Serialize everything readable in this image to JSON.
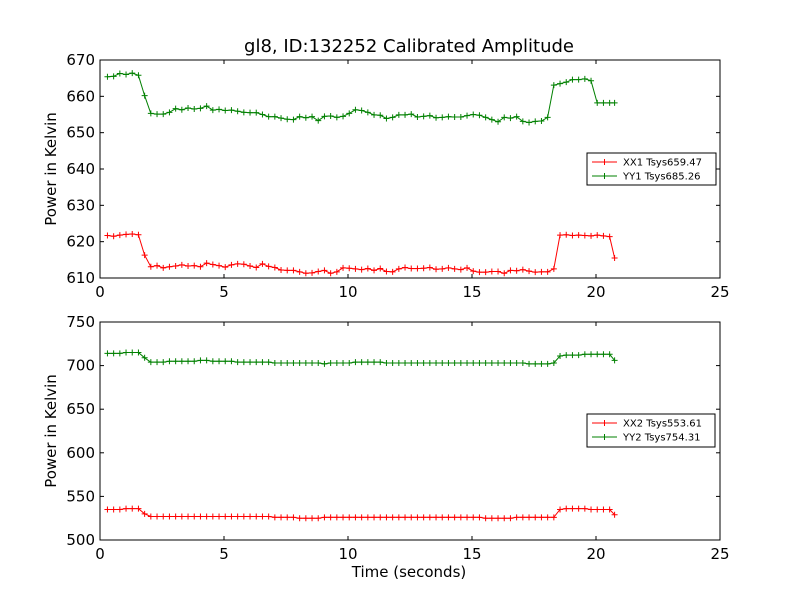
{
  "chart_data": [
    {
      "type": "line",
      "title": "gl8, ID:132252 Calibrated Amplitude",
      "xlabel": "",
      "ylabel": "Power in Kelvin",
      "xlim": [
        0,
        25
      ],
      "ylim": [
        610,
        670
      ],
      "xticks": [
        "0",
        "5",
        "10",
        "15",
        "20",
        "25"
      ],
      "yticks": [
        "610",
        "620",
        "630",
        "640",
        "650",
        "660",
        "670"
      ],
      "legend_position": "right",
      "series": [
        {
          "name": "XX1 Tsys659.47",
          "color": "#ff0000",
          "x": [
            0.3,
            0.55,
            0.8,
            1.05,
            1.3,
            1.55,
            1.8,
            2.05,
            2.3,
            2.55,
            2.8,
            3.05,
            3.3,
            3.55,
            3.8,
            4.05,
            4.3,
            4.55,
            4.8,
            5.05,
            5.3,
            5.55,
            5.8,
            6.05,
            6.3,
            6.55,
            6.8,
            7.05,
            7.3,
            7.55,
            7.8,
            8.05,
            8.3,
            8.55,
            8.8,
            9.05,
            9.3,
            9.55,
            9.8,
            10.05,
            10.3,
            10.55,
            10.8,
            11.05,
            11.3,
            11.55,
            11.8,
            12.05,
            12.3,
            12.55,
            12.8,
            13.05,
            13.3,
            13.55,
            13.8,
            14.05,
            14.3,
            14.55,
            14.8,
            15.05,
            15.3,
            15.55,
            15.8,
            16.05,
            16.3,
            16.55,
            16.8,
            17.05,
            17.3,
            17.55,
            17.8,
            18.05,
            18.3,
            18.55,
            18.8,
            19.05,
            19.3,
            19.55,
            19.8,
            20.05,
            20.3,
            20.55,
            20.75
          ],
          "y": [
            621.7,
            621.5,
            621.8,
            622.0,
            622.1,
            621.9,
            616.3,
            613.1,
            613.4,
            612.8,
            613.1,
            613.3,
            613.6,
            613.3,
            613.4,
            613.1,
            614.1,
            613.7,
            613.4,
            613.0,
            613.6,
            613.9,
            613.8,
            613.3,
            612.9,
            613.9,
            613.2,
            612.9,
            612.2,
            612.1,
            612.1,
            611.7,
            611.3,
            611.4,
            611.8,
            612.1,
            611.3,
            611.7,
            612.8,
            612.7,
            612.5,
            612.3,
            612.6,
            612.1,
            612.6,
            611.8,
            611.7,
            612.5,
            612.9,
            612.6,
            612.6,
            612.7,
            612.9,
            612.4,
            612.5,
            612.8,
            612.5,
            612.3,
            612.8,
            611.9,
            611.6,
            611.6,
            611.8,
            611.8,
            611.3,
            612.1,
            612.0,
            612.3,
            611.9,
            611.6,
            611.7,
            611.7,
            612.5,
            621.8,
            621.9,
            621.7,
            621.8,
            621.7,
            621.6,
            621.8,
            621.6,
            621.4,
            615.5
          ]
        },
        {
          "name": "YY1 Tsys685.26",
          "color": "#008000",
          "x": [
            0.3,
            0.55,
            0.8,
            1.05,
            1.3,
            1.55,
            1.8,
            2.05,
            2.3,
            2.55,
            2.8,
            3.05,
            3.3,
            3.55,
            3.8,
            4.05,
            4.3,
            4.55,
            4.8,
            5.05,
            5.3,
            5.55,
            5.8,
            6.05,
            6.3,
            6.55,
            6.8,
            7.05,
            7.3,
            7.55,
            7.8,
            8.05,
            8.3,
            8.55,
            8.8,
            9.05,
            9.3,
            9.55,
            9.8,
            10.05,
            10.3,
            10.55,
            10.8,
            11.05,
            11.3,
            11.55,
            11.8,
            12.05,
            12.3,
            12.55,
            12.8,
            13.05,
            13.3,
            13.55,
            13.8,
            14.05,
            14.3,
            14.55,
            14.8,
            15.05,
            15.3,
            15.55,
            15.8,
            16.05,
            16.3,
            16.55,
            16.8,
            17.05,
            17.3,
            17.55,
            17.8,
            18.05,
            18.3,
            18.55,
            18.8,
            19.05,
            19.3,
            19.55,
            19.8,
            20.05,
            20.3,
            20.55,
            20.75
          ],
          "y": [
            665.4,
            665.5,
            666.3,
            666.0,
            666.4,
            665.8,
            660.2,
            655.3,
            655.1,
            655.1,
            655.6,
            656.6,
            656.3,
            656.8,
            656.5,
            656.7,
            657.3,
            656.2,
            656.4,
            656.1,
            656.2,
            655.9,
            655.6,
            655.5,
            655.5,
            655.0,
            654.4,
            654.4,
            654.0,
            653.7,
            653.6,
            654.4,
            654.1,
            654.4,
            653.3,
            654.5,
            654.6,
            654.2,
            654.5,
            655.3,
            656.3,
            656.1,
            655.6,
            654.9,
            654.8,
            653.9,
            654.2,
            654.9,
            654.9,
            655.1,
            654.3,
            654.5,
            654.7,
            654.1,
            654.2,
            654.4,
            654.3,
            654.3,
            654.7,
            655.0,
            654.8,
            654.2,
            653.6,
            653.0,
            654.2,
            654.0,
            654.4,
            653.1,
            652.8,
            653.1,
            653.2,
            654.2,
            663.1,
            663.5,
            663.9,
            664.6,
            664.6,
            664.8,
            664.3,
            658.2,
            658.2,
            658.2,
            658.2
          ]
        }
      ]
    },
    {
      "type": "line",
      "title": "",
      "xlabel": "Time (seconds)",
      "ylabel": "Power in Kelvin",
      "xlim": [
        0,
        25
      ],
      "ylim": [
        500,
        750
      ],
      "xticks": [
        "0",
        "5",
        "10",
        "15",
        "20",
        "25"
      ],
      "yticks": [
        "500",
        "550",
        "600",
        "650",
        "700",
        "750"
      ],
      "legend_position": "right",
      "series": [
        {
          "name": "XX2 Tsys553.61",
          "color": "#ff0000",
          "x": [
            0.3,
            0.55,
            0.8,
            1.05,
            1.3,
            1.55,
            1.8,
            2.05,
            2.3,
            2.55,
            2.8,
            3.05,
            3.3,
            3.55,
            3.8,
            4.05,
            4.3,
            4.55,
            4.8,
            5.05,
            5.3,
            5.55,
            5.8,
            6.05,
            6.3,
            6.55,
            6.8,
            7.05,
            7.3,
            7.55,
            7.8,
            8.05,
            8.3,
            8.55,
            8.8,
            9.05,
            9.3,
            9.55,
            9.8,
            10.05,
            10.3,
            10.55,
            10.8,
            11.05,
            11.3,
            11.55,
            11.8,
            12.05,
            12.3,
            12.55,
            12.8,
            13.05,
            13.3,
            13.55,
            13.8,
            14.05,
            14.3,
            14.55,
            14.8,
            15.05,
            15.3,
            15.55,
            15.8,
            16.05,
            16.3,
            16.55,
            16.8,
            17.05,
            17.3,
            17.55,
            17.8,
            18.05,
            18.3,
            18.55,
            18.8,
            19.05,
            19.3,
            19.55,
            19.8,
            20.05,
            20.3,
            20.55,
            20.75
          ],
          "y": [
            535,
            535,
            535,
            536,
            536,
            536,
            530,
            527,
            527,
            527,
            527,
            527,
            527,
            527,
            527,
            527,
            527,
            527,
            527,
            527,
            527,
            527,
            527,
            527,
            527,
            527,
            527,
            526,
            526,
            526,
            526,
            525,
            525,
            525,
            525,
            526,
            526,
            526,
            526,
            526,
            526,
            526,
            526,
            526,
            526,
            526,
            526,
            526,
            526,
            526,
            526,
            526,
            526,
            526,
            526,
            526,
            526,
            526,
            526,
            526,
            526,
            525,
            525,
            525,
            525,
            525,
            526,
            526,
            526,
            526,
            526,
            526,
            526,
            535,
            536,
            536,
            536,
            536,
            535,
            535,
            535,
            535,
            529
          ]
        },
        {
          "name": "YY2 Tsys754.31",
          "color": "#008000",
          "x": [
            0.3,
            0.55,
            0.8,
            1.05,
            1.3,
            1.55,
            1.8,
            2.05,
            2.3,
            2.55,
            2.8,
            3.05,
            3.3,
            3.55,
            3.8,
            4.05,
            4.3,
            4.55,
            4.8,
            5.05,
            5.3,
            5.55,
            5.8,
            6.05,
            6.3,
            6.55,
            6.8,
            7.05,
            7.3,
            7.55,
            7.8,
            8.05,
            8.3,
            8.55,
            8.8,
            9.05,
            9.3,
            9.55,
            9.8,
            10.05,
            10.3,
            10.55,
            10.8,
            11.05,
            11.3,
            11.55,
            11.8,
            12.05,
            12.3,
            12.55,
            12.8,
            13.05,
            13.3,
            13.55,
            13.8,
            14.05,
            14.3,
            14.55,
            14.8,
            15.05,
            15.3,
            15.55,
            15.8,
            16.05,
            16.3,
            16.55,
            16.8,
            17.05,
            17.3,
            17.55,
            17.8,
            18.05,
            18.3,
            18.55,
            18.8,
            19.05,
            19.3,
            19.55,
            19.8,
            20.05,
            20.3,
            20.55,
            20.75
          ],
          "y": [
            714,
            714,
            714,
            715,
            715,
            715,
            709,
            704,
            704,
            704,
            705,
            705,
            705,
            705,
            705,
            706,
            706,
            705,
            705,
            705,
            705,
            704,
            704,
            704,
            704,
            704,
            704,
            703,
            703,
            703,
            703,
            703,
            703,
            703,
            703,
            702,
            703,
            703,
            703,
            703,
            704,
            704,
            704,
            704,
            704,
            703,
            703,
            703,
            703,
            703,
            703,
            703,
            703,
            703,
            703,
            703,
            703,
            703,
            703,
            703,
            703,
            703,
            703,
            703,
            703,
            703,
            703,
            703,
            702,
            702,
            702,
            702,
            703,
            711,
            712,
            712,
            712,
            713,
            713,
            713,
            713,
            713,
            706
          ]
        }
      ]
    }
  ]
}
